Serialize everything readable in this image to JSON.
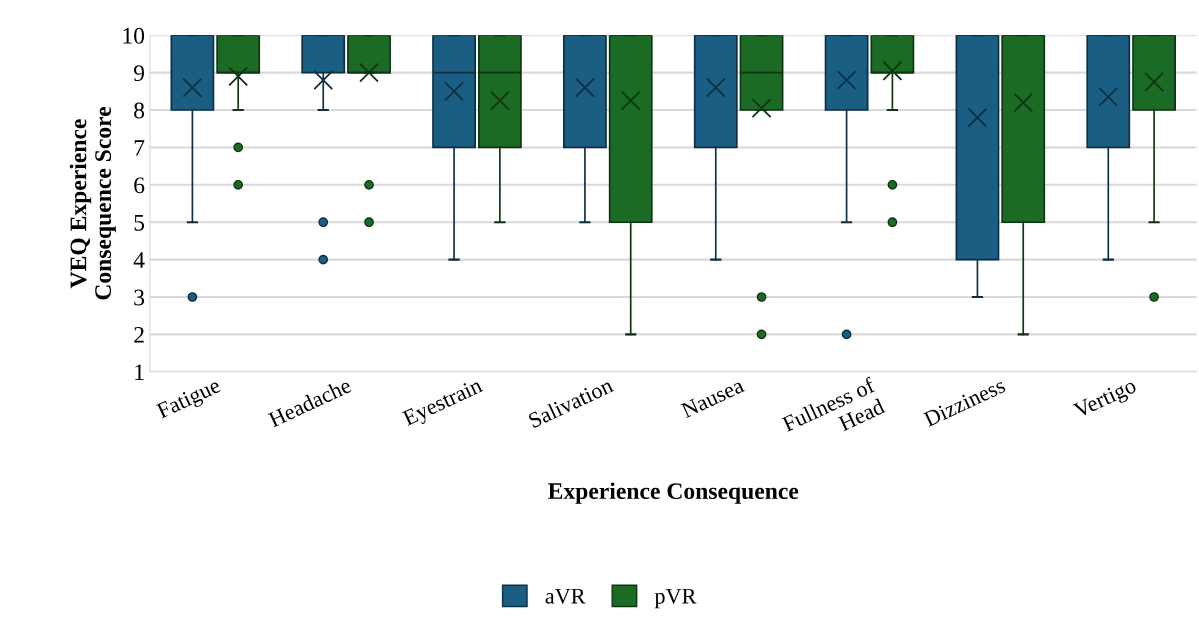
{
  "chart_data": {
    "type": "box",
    "xlabel": "Experience Consequence",
    "ylabel": "VEQ Experience\nConsequence Score",
    "categories": [
      "Fatigue",
      "Headache",
      "Eyestrain",
      "Salivation",
      "Nausea",
      "Fullness of\nHead",
      "Dizziness",
      "Vertigo"
    ],
    "ylim": [
      1,
      10
    ],
    "yticks": [
      1,
      2,
      3,
      4,
      5,
      6,
      7,
      8,
      9,
      10
    ],
    "grid": "y",
    "legend": "bottom",
    "series": [
      {
        "name": "aVR",
        "color": "#1a5e84",
        "boxes": [
          {
            "low": 5,
            "q1": 8,
            "median": 10,
            "q3": 10,
            "high": 10,
            "mean": 8.6,
            "outliers": [
              3
            ]
          },
          {
            "low": 8,
            "q1": 9,
            "median": 10,
            "q3": 10,
            "high": 10,
            "mean": 8.8,
            "outliers": [
              5,
              4
            ]
          },
          {
            "low": 4,
            "q1": 7,
            "median": 9,
            "q3": 10,
            "high": 10,
            "mean": 8.5
          },
          {
            "low": 5,
            "q1": 7,
            "median": 10,
            "q3": 10,
            "high": 10,
            "mean": 8.6
          },
          {
            "low": 4,
            "q1": 7,
            "median": 10,
            "q3": 10,
            "high": 10,
            "mean": 8.6
          },
          {
            "low": 5,
            "q1": 8,
            "median": 10,
            "q3": 10,
            "high": 10,
            "mean": 8.8,
            "outliers": [
              2
            ]
          },
          {
            "low": 3,
            "q1": 4,
            "median": 10,
            "q3": 10,
            "high": 10,
            "mean": 7.8
          },
          {
            "low": 4,
            "q1": 7,
            "median": 10,
            "q3": 10,
            "high": 10,
            "mean": 8.35
          }
        ]
      },
      {
        "name": "pVR",
        "color": "#1c6b24",
        "boxes": [
          {
            "low": 8,
            "q1": 9,
            "median": 9,
            "q3": 10,
            "high": 10,
            "mean": 8.9,
            "outliers": [
              7,
              6
            ]
          },
          {
            "low": 9,
            "q1": 9,
            "median": 9,
            "q3": 10,
            "high": 10,
            "mean": 9.0,
            "outliers": [
              6,
              5
            ]
          },
          {
            "low": 5,
            "q1": 7,
            "median": 9,
            "q3": 10,
            "high": 10,
            "mean": 8.25
          },
          {
            "low": 2,
            "q1": 5,
            "median": 10,
            "q3": 10,
            "high": 10,
            "mean": 8.25
          },
          {
            "low": 8,
            "q1": 8,
            "median": 9,
            "q3": 10,
            "high": 10,
            "mean": 8.05,
            "outliers": [
              3,
              2
            ]
          },
          {
            "low": 8,
            "q1": 9,
            "median": 9,
            "q3": 10,
            "high": 10,
            "mean": 9.05,
            "outliers": [
              6,
              5
            ]
          },
          {
            "low": 2,
            "q1": 5,
            "median": 10,
            "q3": 10,
            "high": 10,
            "mean": 8.2
          },
          {
            "low": 5,
            "q1": 8,
            "median": 10,
            "q3": 10,
            "high": 10,
            "mean": 8.75,
            "outliers": [
              3
            ]
          }
        ]
      }
    ]
  }
}
